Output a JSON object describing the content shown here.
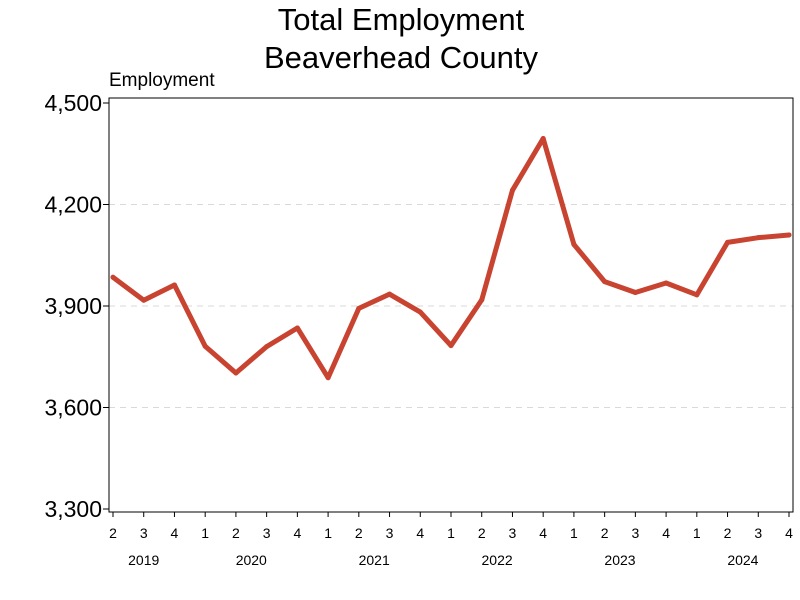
{
  "chart_data": {
    "type": "line",
    "title": [
      "Total Employment",
      "Beaverhead County"
    ],
    "ylabel": "Employment",
    "xlabel": "",
    "ylim": [
      3300,
      4500
    ],
    "yticks": [
      3300,
      3600,
      3900,
      4200,
      4500
    ],
    "ytick_labels": [
      "3,300",
      "3,600",
      "3,900",
      "4,200",
      "4,500"
    ],
    "grid": "horizontal dashed",
    "line_color": "#c84431",
    "grid_color": "#d9d9d9",
    "x": [
      "2019 Q2",
      "2019 Q3",
      "2019 Q4",
      "2020 Q1",
      "2020 Q2",
      "2020 Q3",
      "2020 Q4",
      "2021 Q1",
      "2021 Q2",
      "2021 Q3",
      "2021 Q4",
      "2022 Q1",
      "2022 Q2",
      "2022 Q3",
      "2022 Q4",
      "2023 Q1",
      "2023 Q2",
      "2023 Q3",
      "2023 Q4",
      "2024 Q1",
      "2024 Q2",
      "2024 Q3",
      "2024 Q4"
    ],
    "quarter_labels": [
      "2",
      "3",
      "4",
      "1",
      "2",
      "3",
      "4",
      "1",
      "2",
      "3",
      "4",
      "1",
      "2",
      "3",
      "4",
      "1",
      "2",
      "3",
      "4",
      "1",
      "2",
      "3",
      "4"
    ],
    "year_labels": [
      {
        "label": "2019",
        "start": 0,
        "end": 2
      },
      {
        "label": "2020",
        "start": 3,
        "end": 6
      },
      {
        "label": "2021",
        "start": 7,
        "end": 10
      },
      {
        "label": "2022",
        "start": 11,
        "end": 14
      },
      {
        "label": "2023",
        "start": 15,
        "end": 18
      },
      {
        "label": "2024",
        "start": 19,
        "end": 22
      }
    ],
    "series": [
      {
        "values": [
          3985,
          3917,
          3962,
          3781,
          3702,
          3780,
          3835,
          3688,
          3893,
          3935,
          3882,
          3783,
          3918,
          4242,
          4395,
          4082,
          3972,
          3940,
          3968,
          3933,
          4088,
          4102,
          4110
        ]
      }
    ]
  }
}
